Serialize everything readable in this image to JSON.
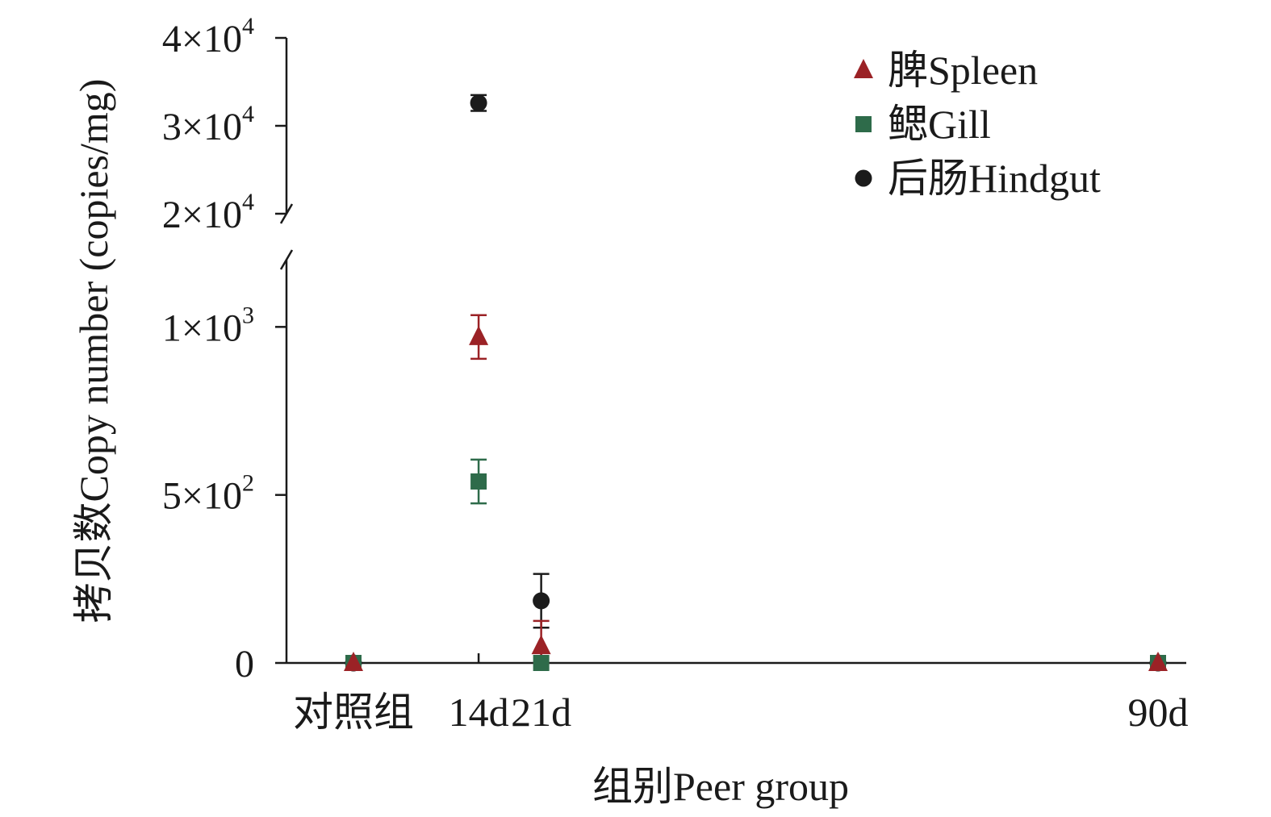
{
  "chart_data": {
    "type": "scatter",
    "xlabel": "组别Peer group",
    "ylabel": "拷贝数Copy number (copies/mg)",
    "categories": [
      "对照组",
      "14d",
      "21d",
      "90d"
    ],
    "x_days": [
      0,
      14,
      21,
      90
    ],
    "y_axis": {
      "broken": true,
      "lower_segment": {
        "ylim": [
          0,
          1200
        ],
        "ticks": [
          0,
          500,
          1000
        ]
      },
      "upper_segment": {
        "ylim": [
          20000,
          40000
        ],
        "ticks": [
          20000,
          30000,
          40000
        ]
      }
    },
    "tick_labels": {
      "y": [
        {
          "value": 0,
          "base": "0",
          "exp": ""
        },
        {
          "value": 500,
          "base": "5×10",
          "exp": "2"
        },
        {
          "value": 1000,
          "base": "1×10",
          "exp": "3"
        },
        {
          "value": 20000,
          "base": "2×10",
          "exp": "4"
        },
        {
          "value": 30000,
          "base": "3×10",
          "exp": "4"
        },
        {
          "value": 40000,
          "base": "4×10",
          "exp": "4"
        }
      ]
    },
    "legend": {
      "position": "top-right"
    },
    "series": [
      {
        "name": "脾Spleen",
        "marker": "triangle",
        "color": "#9b2226",
        "values": [
          0,
          970,
          50,
          0
        ],
        "errors": [
          0,
          65,
          75,
          0
        ]
      },
      {
        "name": "鳃Gill",
        "marker": "square",
        "color": "#2e6b4a",
        "values": [
          0,
          540,
          0,
          0
        ],
        "errors": [
          0,
          65,
          0,
          0
        ]
      },
      {
        "name": "后肠Hindgut",
        "marker": "circle",
        "color": "#1b1b1b",
        "values": [
          0,
          32600,
          185,
          0
        ],
        "errors": [
          0,
          900,
          80,
          0
        ]
      }
    ]
  }
}
